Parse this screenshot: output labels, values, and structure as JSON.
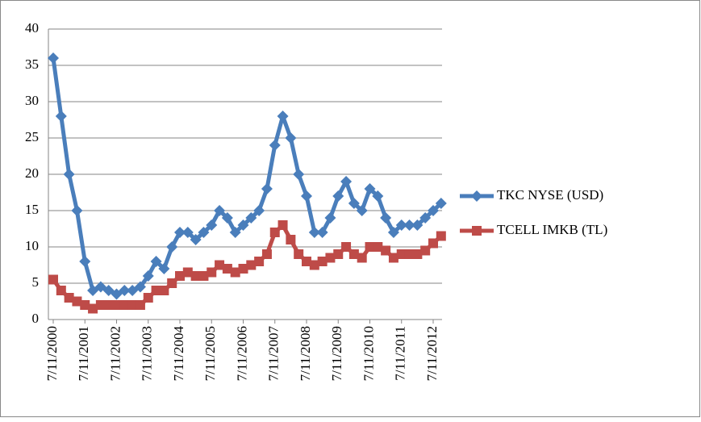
{
  "chart_data": {
    "type": "line",
    "categories": [
      "7/11/2000",
      null,
      null,
      null,
      "7/11/2001",
      null,
      null,
      null,
      "7/11/2002",
      null,
      null,
      null,
      "7/11/2003",
      null,
      null,
      null,
      "7/11/2004",
      null,
      null,
      null,
      "7/11/2005",
      null,
      null,
      null,
      "7/11/2006",
      null,
      null,
      null,
      "7/11/2007",
      null,
      null,
      null,
      "7/11/2008",
      null,
      null,
      null,
      "7/11/2009",
      null,
      null,
      null,
      "7/11/2010",
      null,
      null,
      null,
      "7/11/2011",
      null,
      null,
      null,
      "7/11/2012",
      null
    ],
    "series": [
      {
        "name": "TKC NYSE (USD)",
        "color": "#4a7ebb",
        "marker": "diamond",
        "values": [
          36,
          28,
          20,
          15,
          8,
          4,
          4.5,
          4,
          3.5,
          4,
          4,
          4.5,
          6,
          8,
          7,
          10,
          12,
          12,
          11,
          12,
          13,
          15,
          14,
          12,
          13,
          14,
          15,
          18,
          24,
          28,
          25,
          20,
          17,
          12,
          12,
          14,
          17,
          19,
          16,
          15,
          18,
          17,
          14,
          12,
          13,
          13,
          13,
          14,
          15,
          16
        ]
      },
      {
        "name": "TCELL IMKB (TL)",
        "color": "#be4b48",
        "marker": "square",
        "values": [
          5.5,
          4,
          3,
          2.5,
          2,
          1.5,
          2,
          2,
          2,
          2,
          2,
          2,
          3,
          4,
          4,
          5,
          6,
          6.5,
          6,
          6,
          6.5,
          7.5,
          7,
          6.5,
          7,
          7.5,
          8,
          9,
          12,
          13,
          11,
          9,
          8,
          7.5,
          8,
          8.5,
          9,
          10,
          9,
          8.5,
          10,
          10,
          9.5,
          8.5,
          9,
          9,
          9,
          9.5,
          10.5,
          11.5
        ]
      }
    ],
    "ylim": [
      0,
      40
    ],
    "yticks": [
      0,
      5,
      10,
      15,
      20,
      25,
      30,
      35,
      40
    ],
    "grid": true,
    "legend": "right"
  }
}
